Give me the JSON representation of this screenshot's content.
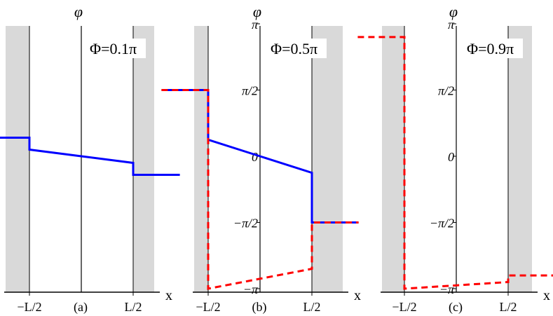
{
  "chart_data": [
    {
      "type": "line",
      "panel": "(a)",
      "annotation": "Φ=0.1π",
      "ylabel": "φ",
      "xlabel": "x",
      "ylim_pi": [
        -1.05,
        1.05
      ],
      "x_ticks": [
        "−L/2",
        "L/2"
      ],
      "y_ticks": [],
      "y_tick_side": "none",
      "series": [
        {
          "color": "#0000ff",
          "dash": false,
          "points": [
            [
              -0.95,
              0.14
            ],
            [
              -0.5,
              0.14
            ],
            [
              -0.5,
              0.05
            ],
            [
              0.0,
              0.0
            ],
            [
              0.5,
              -0.05
            ],
            [
              0.5,
              -0.14
            ],
            [
              0.95,
              -0.14
            ]
          ]
        }
      ]
    },
    {
      "type": "line",
      "panel": "(b)",
      "annotation": "Φ=0.5π",
      "ylabel": "φ",
      "xlabel": "x",
      "ylim_pi": [
        -1.05,
        1.05
      ],
      "x_ticks": [
        "−L/2",
        "L/2"
      ],
      "y_ticks": [
        "π",
        "π/2",
        "0",
        "−π/2",
        "−π"
      ],
      "y_tick_side": "left",
      "series": [
        {
          "color": "#0000ff",
          "dash": false,
          "points": [
            [
              -0.95,
              0.5
            ],
            [
              -0.5,
              0.5
            ],
            [
              -0.5,
              0.125
            ],
            [
              0.0,
              0.0
            ],
            [
              0.5,
              -0.125
            ],
            [
              0.5,
              -0.5
            ],
            [
              0.95,
              -0.5
            ]
          ]
        },
        {
          "color": "#ff0000",
          "dash": true,
          "points": [
            [
              -0.95,
              0.5
            ],
            [
              -0.5,
              0.5
            ],
            [
              -0.5,
              -1.0
            ],
            [
              0.5,
              -0.85
            ],
            [
              0.5,
              -0.5
            ],
            [
              0.95,
              -0.5
            ]
          ]
        }
      ]
    },
    {
      "type": "line",
      "panel": "(c)",
      "annotation": "Φ=0.9π",
      "ylabel": "φ",
      "xlabel": "x",
      "ylim_pi": [
        -1.05,
        1.05
      ],
      "x_ticks": [
        "−L/2",
        "L/2"
      ],
      "y_ticks": [
        "π",
        "π/2",
        "0",
        "−π/2",
        "−π"
      ],
      "y_tick_side": "left",
      "series": [
        {
          "color": "#ff0000",
          "dash": true,
          "points": [
            [
              -0.95,
              0.9
            ],
            [
              -0.5,
              0.9
            ],
            [
              -0.5,
              -1.0
            ],
            [
              0.5,
              -0.95
            ],
            [
              0.5,
              -0.9
            ],
            [
              0.95,
              -0.9
            ]
          ]
        }
      ]
    }
  ]
}
